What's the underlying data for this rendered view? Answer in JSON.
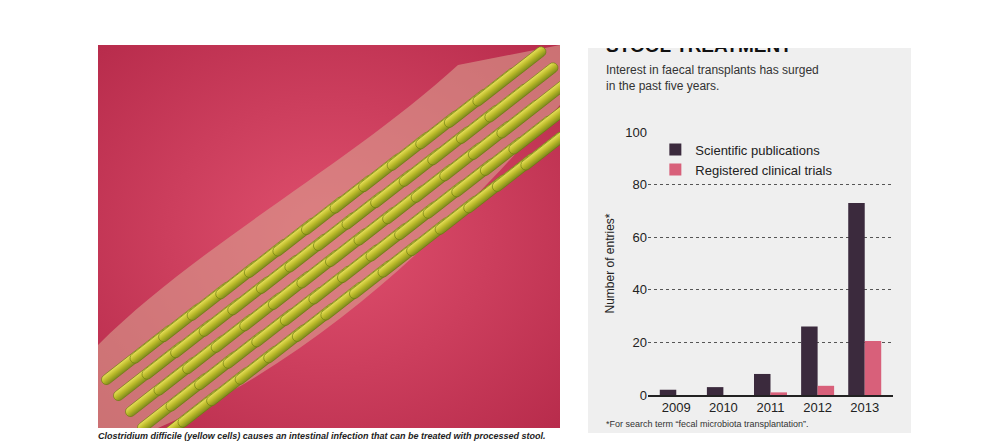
{
  "caption": "Clostridium difficile (yellow cells) causes an intestinal infection that can be treated with processed stool.",
  "chart_data": {
    "type": "bar",
    "title": "STOOL TREATMENT",
    "subtitle": [
      "Interest in faecal transplants has surged",
      "in the past five years."
    ],
    "y_label": "Number of entries*",
    "footnote": "*For search term “fecal microbiota transplantation”.",
    "categories": [
      "2009",
      "2010",
      "2011",
      "2012",
      "2013"
    ],
    "series": [
      {
        "name": "Scientific publications",
        "color": "#3b2a3d",
        "values": [
          2,
          3,
          8,
          26,
          73
        ]
      },
      {
        "name": "Registered clinical trials",
        "color": "#d8607a",
        "values": [
          0,
          0,
          1,
          3.5,
          20.5
        ]
      }
    ],
    "ylim": [
      0,
      100
    ],
    "yticks": [
      0,
      20,
      40,
      60,
      80,
      100
    ],
    "grid": true,
    "legend": "upper left"
  }
}
